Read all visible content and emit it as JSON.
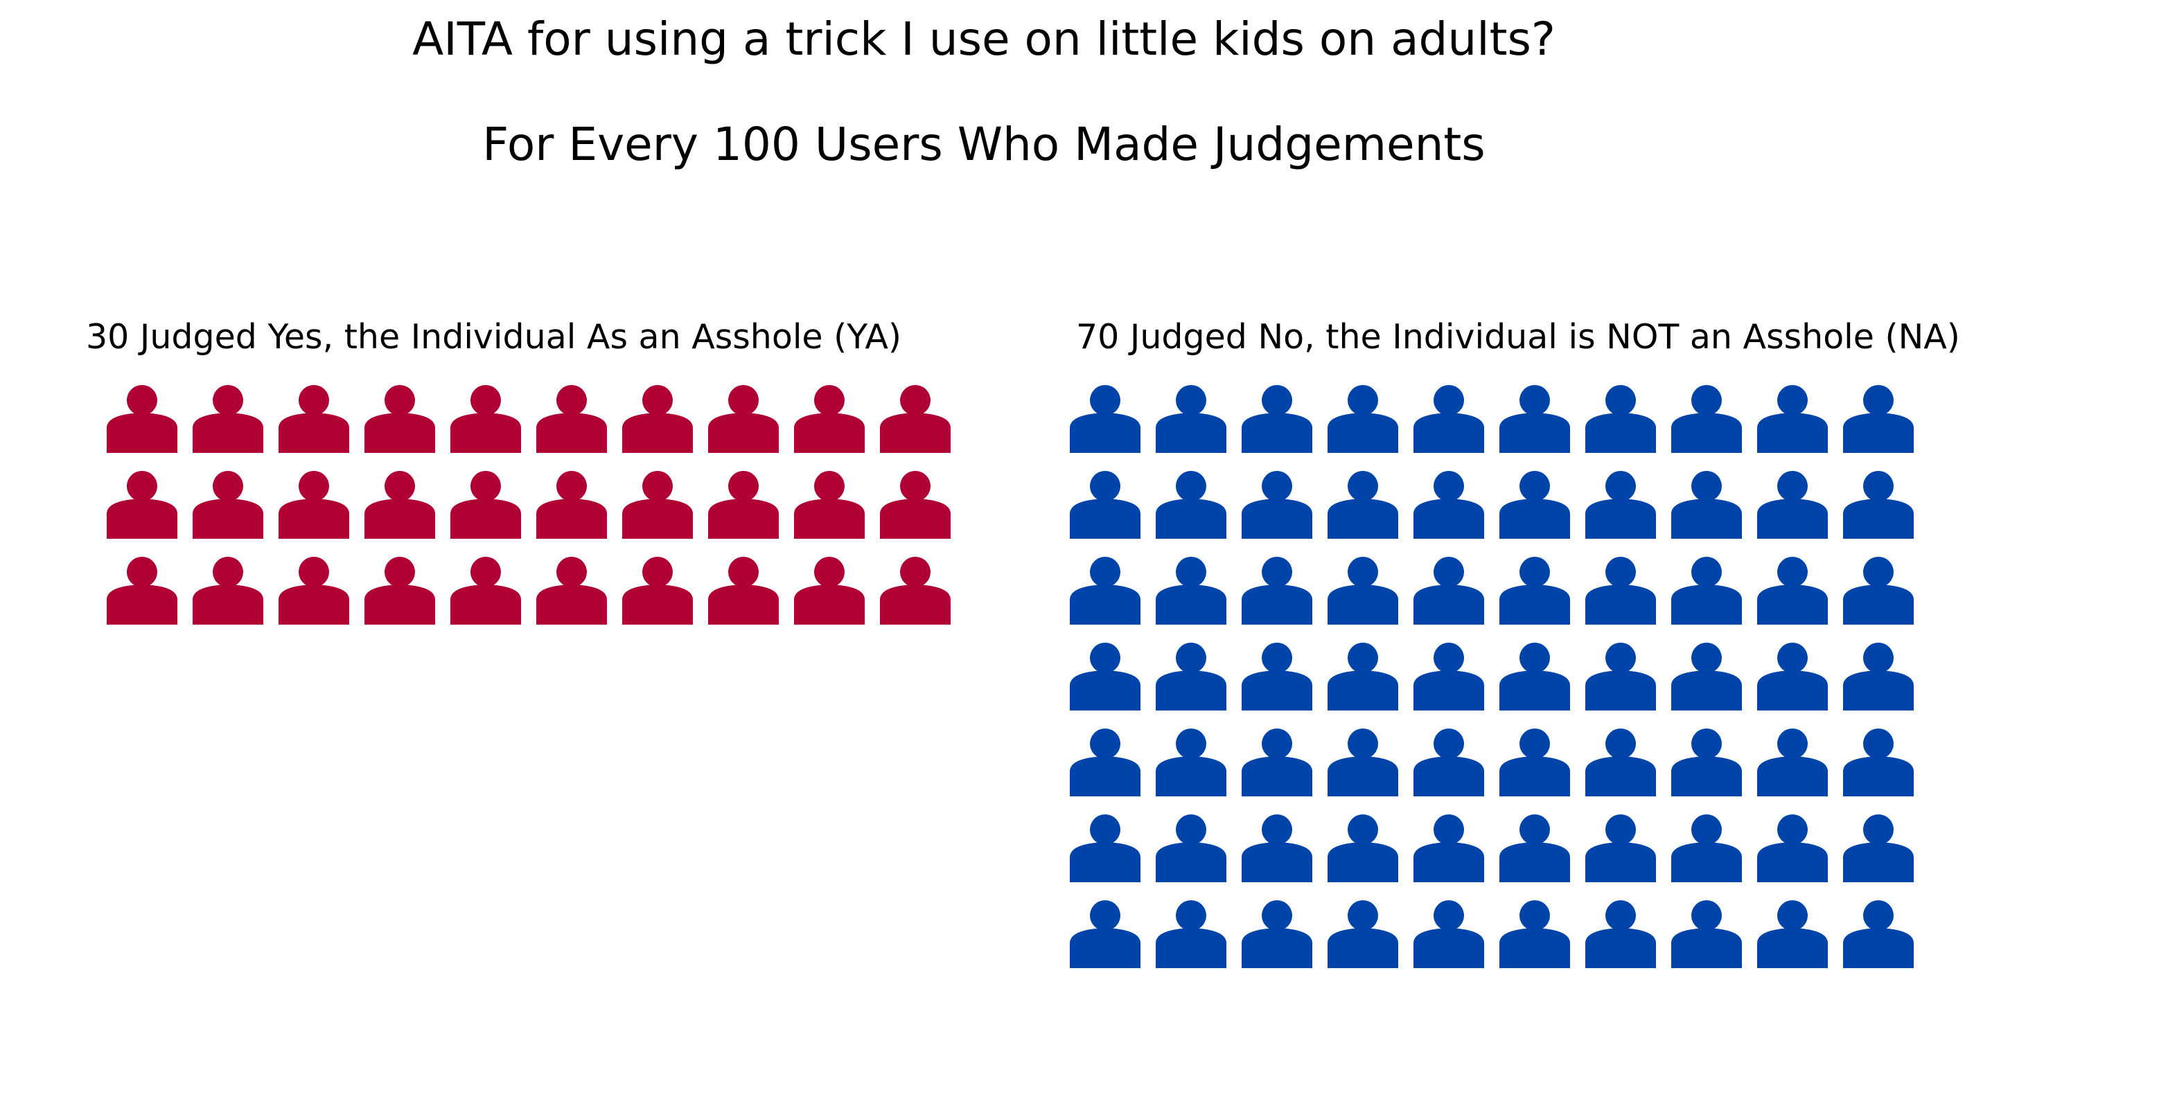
{
  "chart_data": {
    "type": "pictograph",
    "title": "AITA for using a trick I use on little kids on adults?",
    "subtitle": "For Every 100 Users Who Made Judgements",
    "icon": "person-icon",
    "icons_per_row": 10,
    "series": [
      {
        "name": "30 Judged Yes, the Individual As an Asshole (YA)",
        "value": 30,
        "color": "#b10034"
      },
      {
        "name": "70 Judged No, the Individual is NOT an Asshole (NA)",
        "value": 70,
        "color": "#0044a9"
      }
    ]
  }
}
